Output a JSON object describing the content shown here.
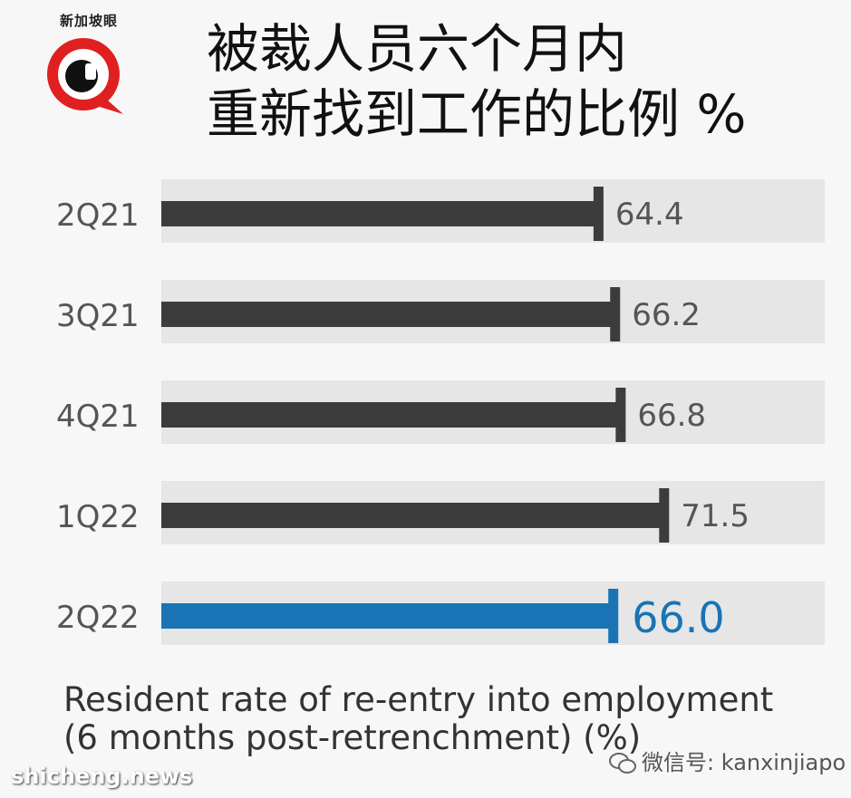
{
  "logo": {
    "text": "新加坡眼",
    "icon": "magnifier-eye-logo-icon"
  },
  "title_lines": [
    "被裁人员六个月内",
    "重新找到工作的比例  %"
  ],
  "caption_lines": [
    "Resident rate of re-entry into employment",
    "(6 months post-retrenchment) (%)"
  ],
  "watermark": {
    "wechat": "微信号: kanxinjiapo",
    "icon": "wechat-icon"
  },
  "source": "shicheng.news",
  "colors": {
    "bar": "#3c3c3c",
    "highlight": "#1a73b5",
    "track": "#e6e6e6",
    "background": "#f7f7f7"
  },
  "chart_data": {
    "type": "bar",
    "orientation": "horizontal",
    "categories": [
      "2Q21",
      "3Q21",
      "4Q21",
      "1Q22",
      "2Q22"
    ],
    "values": [
      64.4,
      66.2,
      66.8,
      71.5,
      66.0
    ],
    "value_labels": [
      "64.4",
      "66.2",
      "66.8",
      "71.5",
      "66.0"
    ],
    "highlight_index": 4,
    "title": "被裁人员六个月内重新找到工作的比例 %",
    "xlabel": "Resident rate of re-entry into employment (6 months post-retrenchment) (%)",
    "ylabel": ""
  }
}
